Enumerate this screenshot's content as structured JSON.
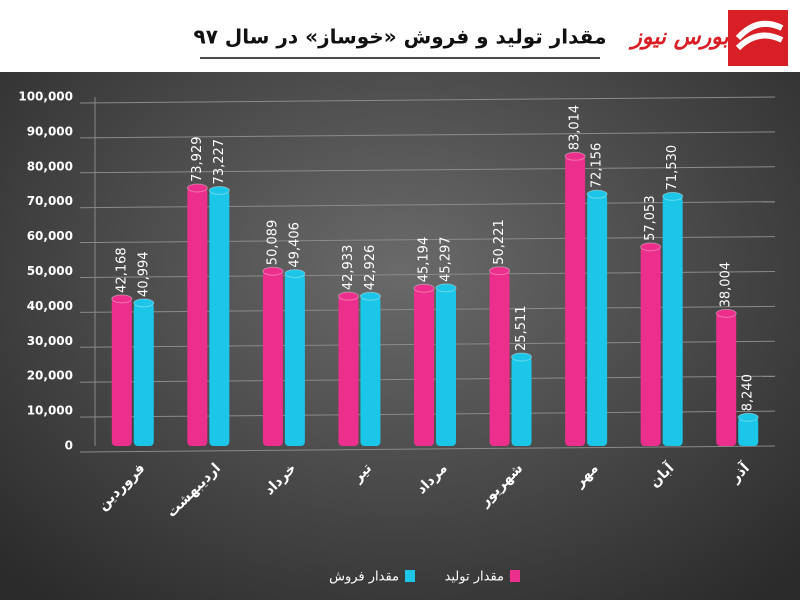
{
  "logo_text": "بورس نیوز",
  "chart_data": {
    "type": "bar",
    "title": "مقدار تولید و فروش «خوساز» در سال ۹۷",
    "categories": [
      "فروردین",
      "اردیبهشت",
      "خرداد",
      "تیر",
      "مرداد",
      "شهریور",
      "مهر",
      "آبان",
      "آذر"
    ],
    "series": [
      {
        "name": "مقدار تولید",
        "color": "#ec2f8c",
        "values": [
          42168,
          73929,
          50089,
          42933,
          45194,
          50221,
          83014,
          57053,
          38004
        ],
        "value_labels": [
          "42,168",
          "73,929",
          "50,089",
          "42,933",
          "45,194",
          "50,221",
          "83,014",
          "57,053",
          "38,004"
        ]
      },
      {
        "name": "مقدار فروش",
        "color": "#1cc6e8",
        "values": [
          40994,
          73227,
          49406,
          42926,
          45297,
          25511,
          72156,
          71530,
          8240
        ],
        "value_labels": [
          "40,994",
          "73,227",
          "49,406",
          "42,926",
          "45,297",
          "25,511",
          "72,156",
          "71,530",
          "8,240"
        ]
      }
    ],
    "ylim": [
      0,
      100000
    ],
    "yticks": [
      0,
      {
        "value": 10000,
        "label": "10,000"
      },
      {
        "value": 20000,
        "label": "20,000"
      },
      {
        "value": 30000,
        "label": "30,000"
      },
      {
        "value": 40000,
        "label": "40,000"
      },
      {
        "value": 50000,
        "label": "50,000"
      },
      {
        "value": 60000,
        "label": "60,000"
      },
      {
        "value": 70000,
        "label": "70,000"
      },
      {
        "value": 80000,
        "label": "80,000"
      },
      {
        "value": 90000,
        "label": "90,000"
      },
      {
        "value": 100000,
        "label": "100,000"
      }
    ],
    "grid": true,
    "legend": "bottom"
  }
}
